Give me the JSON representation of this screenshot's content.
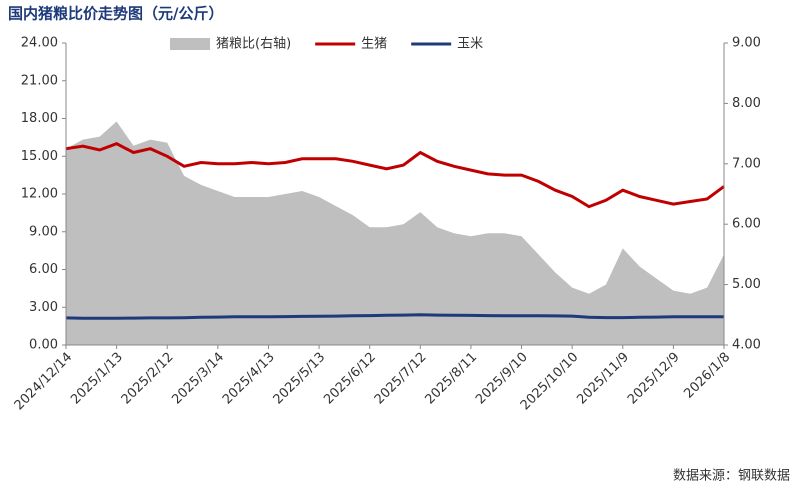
{
  "chart_data": {
    "type": "line",
    "title": "国内猪粮比价走势图（元/公斤）",
    "source": "数据来源：钢联数据",
    "x": [
      "2024/12/14",
      "2024/12/24",
      "2025/1/3",
      "2025/1/13",
      "2025/1/23",
      "2025/2/2",
      "2025/2/12",
      "2025/2/22",
      "2025/3/4",
      "2025/3/14",
      "2025/3/24",
      "2025/4/3",
      "2025/4/13",
      "2025/4/23",
      "2025/5/3",
      "2025/5/13",
      "2025/5/23",
      "2025/6/2",
      "2025/6/12",
      "2025/6/22",
      "2025/7/2",
      "2025/7/12",
      "2025/7/22",
      "2025/8/1",
      "2025/8/11",
      "2025/8/21",
      "2025/8/31",
      "2025/9/10",
      "2025/9/20",
      "2025/9/30",
      "2025/10/10",
      "2025/10/20",
      "2025/10/30",
      "2025/11/9",
      "2025/11/19",
      "2025/11/29",
      "2025/12/9",
      "2025/12/19",
      "2025/12/29",
      "2026/1/8"
    ],
    "series": [
      {
        "name": "猪粮比(右轴)",
        "color": "#bfbfbf",
        "axis": "y2",
        "kind": "area",
        "values": [
          7.25,
          7.4,
          7.45,
          7.7,
          7.3,
          7.4,
          7.35,
          6.8,
          6.65,
          6.55,
          6.45,
          6.45,
          6.45,
          6.5,
          6.55,
          6.45,
          6.3,
          6.15,
          5.95,
          5.95,
          6.0,
          6.2,
          5.95,
          5.85,
          5.8,
          5.85,
          5.85,
          5.8,
          5.5,
          5.2,
          4.95,
          4.85,
          5.0,
          5.6,
          5.3,
          5.1,
          4.9,
          4.85,
          4.95,
          5.5
        ]
      },
      {
        "name": "生猪",
        "color": "#c00000",
        "values": [
          15.6,
          15.8,
          15.5,
          16.0,
          15.3,
          15.6,
          15.0,
          14.2,
          14.5,
          14.4,
          14.4,
          14.5,
          14.4,
          14.5,
          14.8,
          14.8,
          14.8,
          14.6,
          14.3,
          14.0,
          14.3,
          15.3,
          14.6,
          14.2,
          13.9,
          13.6,
          13.5,
          13.5,
          13.0,
          12.3,
          11.8,
          11.0,
          11.5,
          12.3,
          11.8,
          11.5,
          11.2,
          11.4,
          11.6,
          12.6
        ]
      },
      {
        "name": "玉米",
        "color": "#1f3a7a",
        "values": [
          2.15,
          2.13,
          2.13,
          2.13,
          2.14,
          2.15,
          2.15,
          2.17,
          2.2,
          2.22,
          2.24,
          2.25,
          2.25,
          2.26,
          2.27,
          2.28,
          2.3,
          2.32,
          2.34,
          2.36,
          2.38,
          2.4,
          2.38,
          2.36,
          2.35,
          2.34,
          2.33,
          2.32,
          2.32,
          2.31,
          2.3,
          2.2,
          2.18,
          2.18,
          2.2,
          2.22,
          2.24,
          2.25,
          2.25,
          2.25
        ]
      }
    ],
    "xtick_indices": [
      0,
      3,
      6,
      9,
      12,
      15,
      18,
      21,
      24,
      27,
      30,
      33,
      36,
      39
    ],
    "ylim": [
      0,
      24
    ],
    "yticks": [
      {
        "value": 0,
        "label": "0.00"
      },
      {
        "value": 3,
        "label": "3.00"
      },
      {
        "value": 6,
        "label": "6.00"
      },
      {
        "value": 9,
        "label": "9.00"
      },
      {
        "value": 12,
        "label": "12.00"
      },
      {
        "value": 15,
        "label": "15.00"
      },
      {
        "value": 18,
        "label": "18.00"
      },
      {
        "value": 21,
        "label": "21.00"
      },
      {
        "value": 24,
        "label": "24.00"
      }
    ],
    "y2lim": [
      4,
      9
    ],
    "y2ticks": [
      {
        "value": 4,
        "label": "4.00"
      },
      {
        "value": 5,
        "label": "5.00"
      },
      {
        "value": 6,
        "label": "6.00"
      },
      {
        "value": 7,
        "label": "7.00"
      },
      {
        "value": 8,
        "label": "8.00"
      },
      {
        "value": 9,
        "label": "9.00"
      }
    ],
    "legend": "top"
  }
}
